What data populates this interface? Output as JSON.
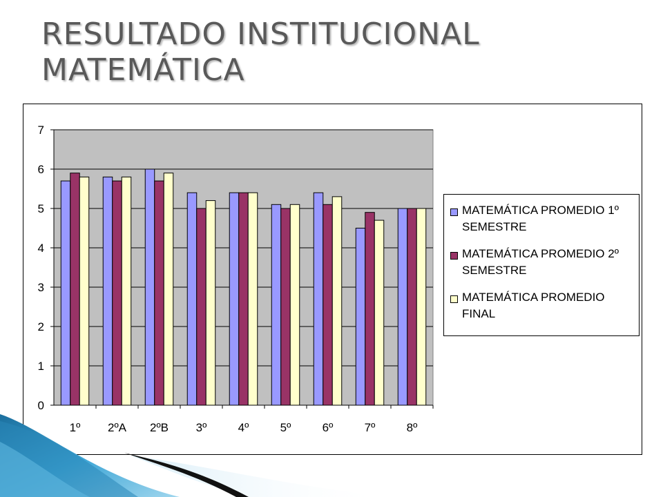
{
  "slide": {
    "title_line1": "RESULTADO INSTITUCIONAL",
    "title_line2": "MATEMÁTICA"
  },
  "chart_data": {
    "type": "bar",
    "categories": [
      "1º",
      "2ºA",
      "2ºB",
      "3º",
      "4º",
      "5º",
      "6º",
      "7º",
      "8º"
    ],
    "series": [
      {
        "name": "MATEMÁTICA PROMEDIO 1º SEMESTRE",
        "color": "#9999ff",
        "values": [
          5.7,
          5.8,
          6.0,
          5.4,
          5.4,
          5.1,
          5.4,
          4.5,
          5.0
        ]
      },
      {
        "name": "MATEMÁTICA PROMEDIO 2º SEMESTRE",
        "color": "#993366",
        "values": [
          5.9,
          5.7,
          5.7,
          5.0,
          5.4,
          5.0,
          5.1,
          4.9,
          5.0
        ]
      },
      {
        "name": "MATEMÁTICA PROMEDIO FINAL",
        "color": "#ffffcc",
        "values": [
          5.8,
          5.8,
          5.9,
          5.2,
          5.4,
          5.1,
          5.3,
          4.7,
          5.0
        ]
      }
    ],
    "yticks": [
      "0",
      "1",
      "2",
      "3",
      "4",
      "5",
      "6",
      "7"
    ],
    "ylim": [
      0,
      7
    ],
    "grid": true,
    "plot_background": "#c0c0c0",
    "legend_position": "right"
  }
}
